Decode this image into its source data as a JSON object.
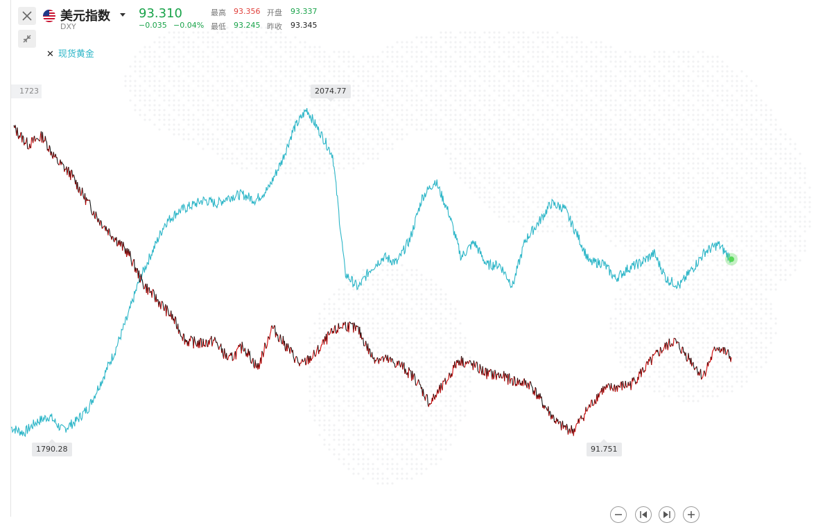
{
  "instrument": {
    "name": "美元指数",
    "symbol": "DXY",
    "last": "93.310",
    "change": "−0.035",
    "change_pct": "−0.04%"
  },
  "stats": {
    "high_label": "最高",
    "high": "93.356",
    "low_label": "最低",
    "low": "93.245",
    "open_label": "开盘",
    "open": "93.337",
    "prev_close_label": "昨收",
    "prev_close": "93.345"
  },
  "compare": {
    "label": "现货黄金",
    "remove_symbol": "✕"
  },
  "markers": {
    "gold_high": "2074.77",
    "gold_low": "1790.28",
    "dxy_low": "91.751",
    "edge_value": "1723"
  },
  "colors": {
    "gold_line": "#2bb5c7",
    "dxy_up": "#d40000",
    "dxy_down": "#111111",
    "positive": "#19a34a",
    "negative": "#e0403b",
    "live_dot": "#58d858"
  },
  "icons": {
    "close": "close-icon",
    "collapse": "collapse-arrows-icon",
    "flag": "us-flag-icon",
    "zoom_out": "zoom-out-icon",
    "step_back": "step-back-icon",
    "step_forward": "step-forward-icon",
    "zoom_in": "zoom-in-icon"
  },
  "chart_data": {
    "type": "line",
    "series": [
      {
        "name": "现货黄金",
        "values": [
          1795,
          1790.28,
          1800,
          1805,
          1793,
          1800,
          1812,
          1835,
          1860,
          1890,
          1925,
          1950,
          1975,
          1985,
          1990,
          1995,
          1992,
          1998,
          2000,
          1995,
          2005,
          2028,
          2058,
          2074.77,
          2055,
          2035,
          1930,
          1918,
          1935,
          1945,
          1940,
          1960,
          1998,
          2012,
          1985,
          1945,
          1958,
          1938,
          1938,
          1920,
          1960,
          1975,
          1992,
          1988,
          1965,
          1940,
          1940,
          1926,
          1935,
          1940,
          1948,
          1925,
          1920,
          1935,
          1950,
          1956,
          1943
        ]
      },
      {
        "name": "美元指数",
        "values": [
          97.3,
          97.0,
          97.15,
          96.7,
          96.45,
          96.0,
          95.6,
          95.3,
          95.0,
          94.45,
          94.15,
          93.85,
          93.4,
          93.35,
          93.4,
          93.05,
          93.3,
          92.9,
          93.65,
          93.3,
          92.95,
          93.15,
          93.5,
          93.7,
          93.6,
          93.1,
          93.05,
          92.95,
          92.7,
          92.25,
          92.6,
          93.05,
          92.95,
          92.8,
          92.75,
          92.65,
          92.6,
          92.2,
          91.85,
          91.751,
          92.15,
          92.5,
          92.55,
          92.6,
          92.9,
          93.2,
          93.4,
          93.1,
          92.75,
          93.3,
          93.1
        ]
      }
    ],
    "annotations": [
      "2074.77",
      "1790.28",
      "91.751"
    ]
  }
}
